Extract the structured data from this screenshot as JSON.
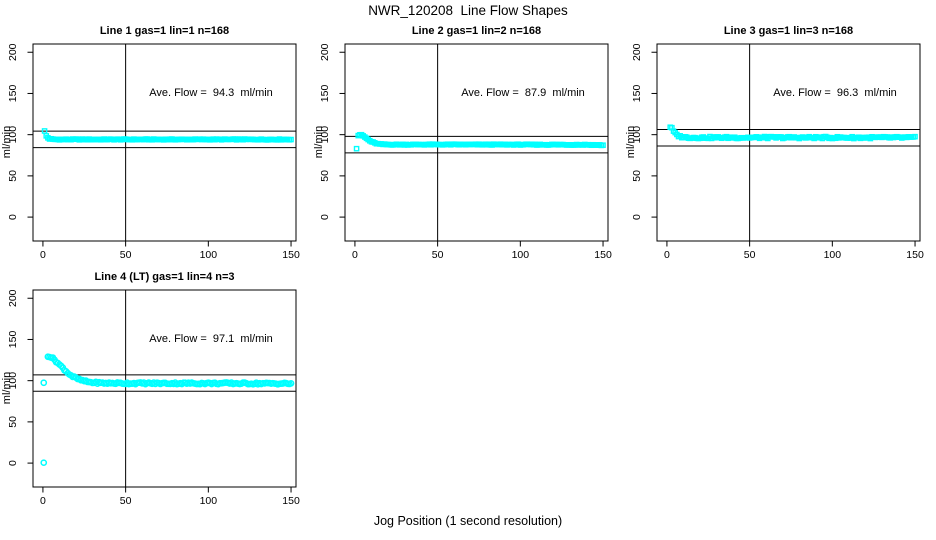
{
  "figure": {
    "title": "NWR_120208  Line Flow Shapes",
    "xlabel": "Jog Position (1 second resolution)",
    "background_color": "#ffffff",
    "marker_color": "#00ffff",
    "axis_color": "#000000"
  },
  "chart_data": [
    {
      "type": "scatter",
      "title": "Line 1 gas=1 lin=1 n=168",
      "annotation": "Ave. Flow =  94.3  ml/min",
      "ave_flow_ml_min": 94.3,
      "ylabel": "ml/min",
      "x_ticks": [
        0,
        50,
        100,
        150
      ],
      "y_ticks": [
        0,
        50,
        100,
        150,
        200
      ],
      "xlim": [
        -6,
        153
      ],
      "ylim": [
        -29,
        210
      ],
      "ref_vline_x": 50,
      "ref_hlines_y": [
        104.3,
        84.3
      ],
      "marker": {
        "shape": "square",
        "size": 4.2
      },
      "isolated_points": [
        [
          1,
          104.5
        ]
      ],
      "band": {
        "x_start": 2,
        "x_end": 150,
        "noise": 0.5,
        "anchors": [
          [
            2,
            98.5
          ],
          [
            3,
            96.2
          ],
          [
            4,
            95.0
          ],
          [
            6,
            94.4
          ],
          [
            10,
            94.2
          ],
          [
            80,
            94.2
          ],
          [
            150,
            94.2
          ]
        ]
      }
    },
    {
      "type": "scatter",
      "title": "Line 2 gas=1 lin=2 n=168",
      "annotation": "Ave. Flow =  87.9  ml/min",
      "ave_flow_ml_min": 87.9,
      "ylabel": "ml/min",
      "x_ticks": [
        0,
        50,
        100,
        150
      ],
      "y_ticks": [
        0,
        50,
        100,
        150,
        200
      ],
      "xlim": [
        -6,
        153
      ],
      "ylim": [
        -29,
        210
      ],
      "ref_vline_x": 50,
      "ref_hlines_y": [
        97.9,
        77.9
      ],
      "marker": {
        "shape": "square",
        "size": 4.2
      },
      "isolated_points": [
        [
          1,
          83
        ]
      ],
      "band": {
        "x_start": 2,
        "x_end": 150,
        "noise": 0.5,
        "anchors": [
          [
            2,
            99.0
          ],
          [
            3,
            100.0
          ],
          [
            4,
            99.5
          ],
          [
            5,
            98.5
          ],
          [
            6,
            97.0
          ],
          [
            7,
            95.5
          ],
          [
            8,
            94.0
          ],
          [
            9,
            92.5
          ],
          [
            10,
            91.5
          ],
          [
            12,
            89.8
          ],
          [
            14,
            88.8
          ],
          [
            16,
            88.3
          ],
          [
            20,
            88.0
          ],
          [
            80,
            88.0
          ],
          [
            140,
            87.8
          ],
          [
            148,
            87.4
          ],
          [
            150,
            87.2
          ]
        ]
      }
    },
    {
      "type": "scatter",
      "title": "Line 3 gas=1 lin=3 n=168",
      "annotation": "Ave. Flow =  96.3  ml/min",
      "ave_flow_ml_min": 96.3,
      "ylabel": "ml/min",
      "x_ticks": [
        0,
        50,
        100,
        150
      ],
      "y_ticks": [
        0,
        50,
        100,
        150,
        200
      ],
      "xlim": [
        -6,
        153
      ],
      "ylim": [
        -29,
        210
      ],
      "ref_vline_x": 50,
      "ref_hlines_y": [
        106.3,
        86.3
      ],
      "marker": {
        "shape": "square",
        "size": 4.2
      },
      "isolated_points": [],
      "band": {
        "x_start": 2,
        "x_end": 150,
        "noise": 1.2,
        "anchors": [
          [
            2,
            109.5
          ],
          [
            3,
            107.5
          ],
          [
            4,
            104.0
          ],
          [
            5,
            101.5
          ],
          [
            6,
            99.8
          ],
          [
            7,
            98.6
          ],
          [
            8,
            97.8
          ],
          [
            10,
            97.0
          ],
          [
            12,
            96.7
          ],
          [
            15,
            96.5
          ],
          [
            80,
            96.5
          ],
          [
            150,
            96.4
          ]
        ]
      }
    },
    {
      "type": "scatter",
      "title": "Line 4 (LT) gas=1 lin=4 n=3",
      "annotation": "Ave. Flow =  97.1  ml/min",
      "ave_flow_ml_min": 97.1,
      "ylabel": "ml/min",
      "x_ticks": [
        0,
        50,
        100,
        150
      ],
      "y_ticks": [
        0,
        50,
        100,
        150,
        200
      ],
      "xlim": [
        -6,
        153
      ],
      "ylim": [
        -29,
        210
      ],
      "ref_vline_x": 50,
      "ref_hlines_y": [
        107.1,
        87.1
      ],
      "marker": {
        "shape": "circle",
        "size": 5.2
      },
      "isolated_points": [
        [
          0.5,
          0.5
        ],
        [
          0.5,
          97.5
        ]
      ],
      "band": {
        "x_start": 3,
        "x_end": 150,
        "noise": 1.1,
        "anchors": [
          [
            3,
            130.0
          ],
          [
            4,
            129.5
          ],
          [
            5,
            128.5
          ],
          [
            6,
            127.0
          ],
          [
            7,
            125.5
          ],
          [
            8,
            123.5
          ],
          [
            9,
            121.5
          ],
          [
            10,
            119.5
          ],
          [
            11,
            117.5
          ],
          [
            12,
            115.5
          ],
          [
            13,
            113.5
          ],
          [
            14,
            111.5
          ],
          [
            15,
            109.5
          ],
          [
            16,
            108.0
          ],
          [
            17,
            106.5
          ],
          [
            18,
            105.0
          ],
          [
            19,
            104.0
          ],
          [
            20,
            103.0
          ],
          [
            22,
            101.2
          ],
          [
            24,
            100.0
          ],
          [
            26,
            99.0
          ],
          [
            28,
            98.3
          ],
          [
            30,
            97.8
          ],
          [
            35,
            97.2
          ],
          [
            40,
            97.0
          ],
          [
            60,
            96.8
          ],
          [
            100,
            96.8
          ],
          [
            150,
            96.5
          ]
        ]
      }
    }
  ]
}
